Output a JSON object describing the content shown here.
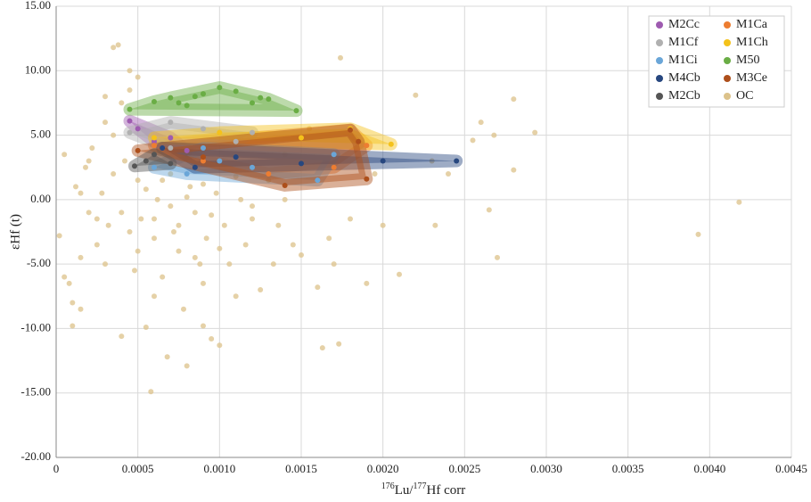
{
  "chart_data": {
    "type": "scatter",
    "ylabel": "εHf (t)",
    "xlabel": [
      "176",
      "Lu/",
      "177",
      "Hf corr"
    ],
    "xlim": [
      0,
      0.0045
    ],
    "xticks": [
      0,
      0.0005,
      {
        "value": 0.001,
        "label": "0.0010"
      },
      0.0015,
      {
        "value": 0.002,
        "label": "0.0020"
      },
      0.0025,
      {
        "value": 0.003,
        "label": "0.0030"
      },
      0.0035,
      {
        "value": 0.004,
        "label": "0.0040"
      },
      0.0045
    ],
    "ylim": [
      -20,
      15
    ],
    "yticks": [
      {
        "value": -20,
        "label": "-20.00"
      },
      {
        "value": -15,
        "label": "-15.00"
      },
      {
        "value": -10,
        "label": "-10.00"
      },
      {
        "value": -5,
        "label": "-5.00"
      },
      {
        "value": 0,
        "label": "0.00"
      },
      {
        "value": 5,
        "label": "5.00"
      },
      {
        "value": 10,
        "label": "10.00"
      },
      {
        "value": 15,
        "label": "15.00"
      }
    ],
    "grid": true,
    "legend": "top-right",
    "series": [
      {
        "name": "M2Cc",
        "color": "#9e5bb0",
        "x": [
          0.00045,
          0.0005,
          0.0006,
          0.0007,
          0.0008
        ],
        "y": [
          6.1,
          5.5,
          4.5,
          4.8,
          3.8
        ]
      },
      {
        "name": "M1Ca",
        "color": "#ed7d31",
        "x": [
          0.0006,
          0.0009,
          0.0013,
          0.0017,
          0.0018,
          0.0019
        ],
        "y": [
          4.2,
          3.0,
          2.0,
          2.5,
          5.4,
          4.2
        ]
      },
      {
        "name": "M1Cf",
        "color": "#b0b0b0",
        "x": [
          0.00045,
          0.0007,
          0.0009,
          0.0011,
          0.0012,
          0.0007
        ],
        "y": [
          5.2,
          6.0,
          5.5,
          4.5,
          5.2,
          4.0
        ]
      },
      {
        "name": "M1Ch",
        "color": "#f4c21b",
        "x": [
          0.0006,
          0.001,
          0.0015,
          0.00205,
          0.0018
        ],
        "y": [
          4.8,
          5.2,
          4.8,
          4.3,
          5.5
        ]
      },
      {
        "name": "M1Ci",
        "color": "#6aa6d8",
        "x": [
          0.0006,
          0.0008,
          0.001,
          0.0012,
          0.0016,
          0.0017,
          0.0009
        ],
        "y": [
          2.5,
          2.0,
          3.0,
          2.5,
          1.5,
          3.5,
          4.0
        ]
      },
      {
        "name": "M50",
        "color": "#6aad45",
        "x": [
          0.00045,
          0.0006,
          0.0007,
          0.00075,
          0.0008,
          0.00085,
          0.0009,
          0.001,
          0.0011,
          0.0012,
          0.00125,
          0.0013,
          0.00147
        ],
        "y": [
          7.0,
          7.6,
          7.9,
          7.5,
          7.3,
          8.0,
          8.2,
          8.7,
          8.4,
          7.5,
          7.9,
          7.8,
          6.9
        ]
      },
      {
        "name": "M4Cb",
        "color": "#27477f",
        "x": [
          0.00065,
          0.00085,
          0.0011,
          0.0015,
          0.002,
          0.00245
        ],
        "y": [
          4.0,
          2.5,
          3.3,
          2.8,
          3.0,
          3.0
        ]
      },
      {
        "name": "M3Ce",
        "color": "#ad4f1b",
        "x": [
          0.0005,
          0.0009,
          0.0014,
          0.0019,
          0.0018,
          0.00185
        ],
        "y": [
          3.8,
          3.3,
          1.1,
          1.6,
          5.4,
          4.5
        ]
      },
      {
        "name": "M2Cb",
        "color": "#555555",
        "x": [
          0.00048,
          0.00055,
          0.0007,
          0.0006
        ],
        "y": [
          2.6,
          3.0,
          2.8,
          3.5
        ]
      },
      {
        "name": "OC",
        "color": "#dcc28a",
        "x": [
          2e-05,
          5e-05,
          8e-05,
          0.0001,
          0.00012,
          0.00015,
          0.00018,
          0.0002,
          0.00022,
          0.00025,
          0.00028,
          0.0003,
          0.00032,
          0.00035,
          0.00038,
          0.0004,
          0.00042,
          0.00045,
          0.00048,
          0.0005,
          0.00052,
          0.00055,
          0.00058,
          0.0006,
          0.00062,
          0.00065,
          0.00068,
          0.0007,
          0.00072,
          0.00075,
          0.00078,
          0.0008,
          0.00082,
          0.00085,
          0.00088,
          0.0009,
          0.00092,
          0.00095,
          0.00098,
          0.001,
          0.00103,
          0.00106,
          0.0011,
          0.00113,
          0.00116,
          0.0012,
          0.00125,
          0.0013,
          0.00133,
          0.00136,
          0.0014,
          0.00145,
          0.0015,
          0.00155,
          0.0016,
          0.00163,
          0.00167,
          0.0017,
          0.00173,
          0.00174,
          0.0018,
          0.0019,
          0.00195,
          0.002,
          0.0021,
          0.0022,
          0.0023,
          0.00232,
          0.0024,
          0.00255,
          0.0026,
          0.00265,
          0.00268,
          0.0027,
          0.0028,
          0.0028,
          0.00293,
          0.00393,
          0.00418,
          5e-05,
          0.00015,
          0.0002,
          0.00025,
          0.0003,
          0.00035,
          0.0004,
          0.00045,
          0.0005,
          0.00055,
          0.0006,
          0.00065,
          0.0007,
          0.00075,
          0.0008,
          0.00085,
          0.0009,
          0.00095,
          0.001,
          0.0011,
          0.0012,
          0.00015,
          0.0001,
          0.0003,
          0.0004,
          0.00045,
          0.0005,
          0.00035,
          0.0006,
          0.0009,
          0.0014
        ],
        "y": [
          -2.8,
          3.5,
          -6.5,
          -8.0,
          1.0,
          -4.5,
          2.5,
          -1.0,
          4.0,
          -3.5,
          0.5,
          6.0,
          -2.0,
          11.8,
          12.0,
          -10.6,
          3.0,
          10.0,
          -5.5,
          1.5,
          -1.5,
          -9.9,
          -14.9,
          -3.0,
          0.0,
          -6.0,
          -12.2,
          2.0,
          -2.5,
          -4.0,
          -8.5,
          -12.9,
          1.0,
          -1.0,
          -5.0,
          -9.8,
          -3.0,
          -10.8,
          0.5,
          -11.3,
          -2.0,
          -5.0,
          -7.5,
          0.0,
          -3.5,
          -1.5,
          -7.0,
          1.5,
          -5.0,
          -2.0,
          0.0,
          -3.5,
          -4.3,
          5.5,
          -6.8,
          -11.5,
          -3.0,
          -5.0,
          -11.2,
          11.0,
          -1.5,
          -6.5,
          2.0,
          -2.0,
          -5.8,
          8.1,
          3.0,
          -2.0,
          2.0,
          4.6,
          6.0,
          -0.8,
          5.0,
          -4.5,
          7.8,
          2.3,
          5.2,
          -2.7,
          -0.2,
          -6.0,
          0.5,
          3.0,
          -1.5,
          -5.0,
          2.0,
          -1.0,
          -2.5,
          -4.0,
          0.8,
          -1.5,
          1.5,
          -0.5,
          -2.0,
          0.2,
          -4.5,
          1.2,
          -1.2,
          -3.8,
          1.8,
          -0.5,
          -8.5,
          -9.8,
          8.0,
          7.5,
          8.5,
          9.5,
          5.0,
          -7.5,
          -6.5,
          3.5
        ]
      }
    ]
  }
}
